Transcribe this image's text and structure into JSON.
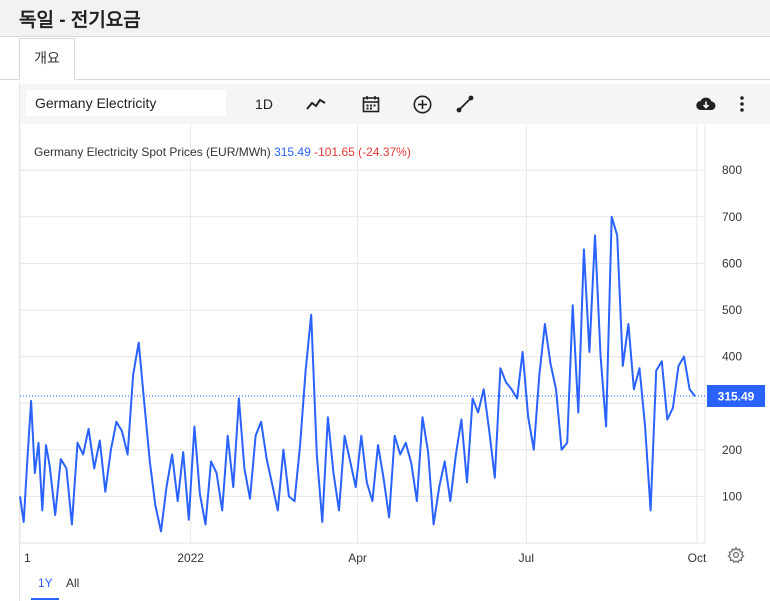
{
  "page": {
    "title": "독일 - 전기요금"
  },
  "tabs": [
    {
      "label": "개요"
    }
  ],
  "toolbar": {
    "symbol_value": "Germany Electricity",
    "interval_label": "1D",
    "icons": [
      "line-chart-icon",
      "calendar-icon",
      "add-indicator-icon",
      "drawing-tool-icon",
      "download-icon",
      "more-options-icon"
    ]
  },
  "legend": {
    "name": "Germany Electricity Spot Prices (EUR/MWh)",
    "price": "315.49",
    "change": "-101.65 (-24.37%)"
  },
  "range_buttons": {
    "one_year": "1Y",
    "all": "All"
  },
  "colors": {
    "line": "#2962ff",
    "change_negative": "#e53935",
    "grid": "#e6e6e6"
  },
  "chart_data": {
    "type": "line",
    "title": "Germany Electricity Spot Prices (EUR/MWh)",
    "xlabel": "",
    "ylabel": "",
    "y_ticks": [
      100,
      200,
      300,
      400,
      500,
      600,
      700,
      800
    ],
    "y_tick_labels": [
      "100",
      "200",
      "300",
      "400",
      "500",
      "600",
      "700",
      "800"
    ],
    "x_tick_labels": [
      "1",
      "2022",
      "Apr",
      "Jul",
      "Oct"
    ],
    "x_tick_dates": [
      "2021-10-01",
      "2022-01-01",
      "2022-04-01",
      "2022-07-01",
      "2022-10-01"
    ],
    "ylim": [
      0,
      850
    ],
    "xlim": [
      "2021-10-01",
      "2022-10-01"
    ],
    "grid": true,
    "price_axis_side": "right",
    "last_value_label": "315.49",
    "series": [
      {
        "dates": [
          "2021-10-01",
          "2021-10-03",
          "2021-10-05",
          "2021-10-07",
          "2021-10-09",
          "2021-10-11",
          "2021-10-13",
          "2021-10-15",
          "2021-10-17",
          "2021-10-20",
          "2021-10-23",
          "2021-10-26",
          "2021-10-29",
          "2021-11-01",
          "2021-11-04",
          "2021-11-07",
          "2021-11-10",
          "2021-11-13",
          "2021-11-16",
          "2021-11-19",
          "2021-11-22",
          "2021-11-25",
          "2021-11-28",
          "2021-12-01",
          "2021-12-04",
          "2021-12-07",
          "2021-12-10",
          "2021-12-13",
          "2021-12-16",
          "2021-12-19",
          "2021-12-22",
          "2021-12-25",
          "2021-12-28",
          "2021-12-31",
          "2022-01-03",
          "2022-01-06",
          "2022-01-09",
          "2022-01-12",
          "2022-01-15",
          "2022-01-18",
          "2022-01-21",
          "2022-01-24",
          "2022-01-27",
          "2022-01-30",
          "2022-02-02",
          "2022-02-05",
          "2022-02-08",
          "2022-02-11",
          "2022-02-14",
          "2022-02-17",
          "2022-02-20",
          "2022-02-23",
          "2022-02-26",
          "2022-03-01",
          "2022-03-04",
          "2022-03-07",
          "2022-03-10",
          "2022-03-13",
          "2022-03-16",
          "2022-03-19",
          "2022-03-22",
          "2022-03-25",
          "2022-03-28",
          "2022-03-31",
          "2022-04-03",
          "2022-04-06",
          "2022-04-09",
          "2022-04-12",
          "2022-04-15",
          "2022-04-18",
          "2022-04-21",
          "2022-04-24",
          "2022-04-27",
          "2022-04-30",
          "2022-05-03",
          "2022-05-06",
          "2022-05-09",
          "2022-05-12",
          "2022-05-15",
          "2022-05-18",
          "2022-05-21",
          "2022-05-24",
          "2022-05-27",
          "2022-05-30",
          "2022-06-02",
          "2022-06-05",
          "2022-06-08",
          "2022-06-11",
          "2022-06-14",
          "2022-06-17",
          "2022-06-20",
          "2022-06-23",
          "2022-06-26",
          "2022-06-29",
          "2022-07-02",
          "2022-07-05",
          "2022-07-08",
          "2022-07-11",
          "2022-07-14",
          "2022-07-17",
          "2022-07-20",
          "2022-07-23",
          "2022-07-26",
          "2022-07-29",
          "2022-08-01",
          "2022-08-04",
          "2022-08-07",
          "2022-08-10",
          "2022-08-13",
          "2022-08-16",
          "2022-08-19",
          "2022-08-22",
          "2022-08-25",
          "2022-08-28",
          "2022-08-31",
          "2022-09-03",
          "2022-09-06",
          "2022-09-09",
          "2022-09-12",
          "2022-09-15",
          "2022-09-18",
          "2022-09-21",
          "2022-09-24",
          "2022-09-27",
          "2022-09-30"
        ],
        "values": [
          100,
          45,
          180,
          305,
          150,
          215,
          70,
          210,
          165,
          60,
          180,
          160,
          40,
          215,
          190,
          245,
          160,
          220,
          110,
          200,
          260,
          240,
          190,
          360,
          430,
          300,
          175,
          80,
          25,
          120,
          190,
          90,
          195,
          50,
          250,
          105,
          40,
          175,
          150,
          70,
          230,
          120,
          310,
          160,
          95,
          230,
          260,
          180,
          125,
          70,
          200,
          100,
          90,
          210,
          370,
          490,
          190,
          45,
          270,
          150,
          70,
          230,
          175,
          120,
          230,
          130,
          90,
          210,
          140,
          55,
          230,
          190,
          215,
          170,
          90,
          270,
          195,
          40,
          120,
          175,
          90,
          190,
          265,
          130,
          310,
          280,
          330,
          240,
          140,
          375,
          345,
          330,
          310,
          410,
          270,
          200,
          360,
          470,
          385,
          330,
          200,
          215,
          510,
          280,
          630,
          410,
          660,
          400,
          250,
          700,
          660,
          380,
          470,
          330,
          375,
          250,
          70,
          370,
          390,
          265,
          290,
          380,
          400,
          330,
          315
        ]
      }
    ]
  }
}
